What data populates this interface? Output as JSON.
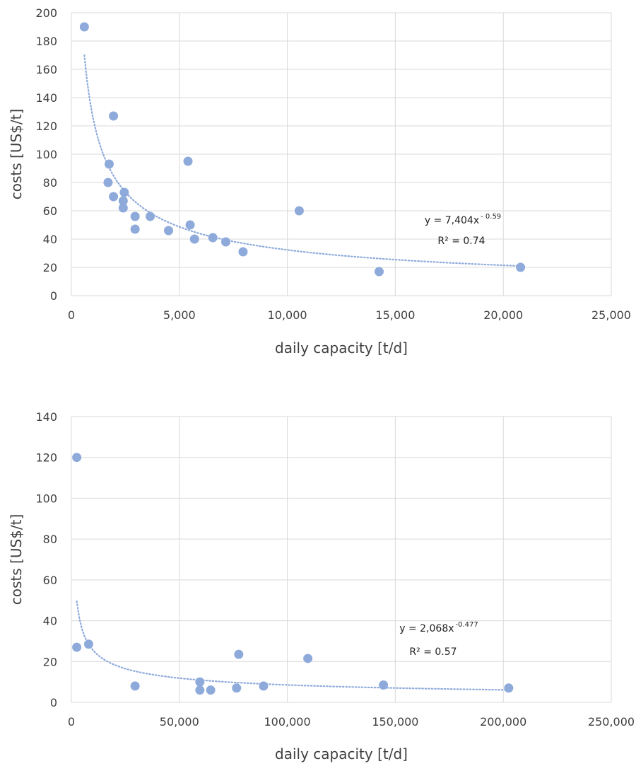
{
  "colors": {
    "marker": "#8eaadb",
    "trendline": "#8eaadb",
    "grid": "#d9d9d9",
    "text": "#404040"
  },
  "chart_data": [
    {
      "type": "scatter",
      "xlabel": "daily capacity [t/d]",
      "ylabel": "costs [US$/t]",
      "xlim": [
        0,
        25000
      ],
      "ylim": [
        0,
        200
      ],
      "x_ticks": [
        0,
        5000,
        10000,
        15000,
        20000,
        25000
      ],
      "x_tick_labels": [
        "0",
        "5,000",
        "10,000",
        "15,000",
        "20,000",
        "25,000"
      ],
      "y_ticks": [
        0,
        20,
        40,
        60,
        80,
        100,
        120,
        140,
        160,
        180,
        200
      ],
      "y_tick_labels": [
        "0",
        "20",
        "40",
        "60",
        "80",
        "100",
        "120",
        "140",
        "160",
        "180",
        "200"
      ],
      "grid": "vertical and horizontal",
      "points": [
        {
          "x": 600,
          "y": 190
        },
        {
          "x": 1950,
          "y": 127
        },
        {
          "x": 1750,
          "y": 93
        },
        {
          "x": 1700,
          "y": 80
        },
        {
          "x": 1950,
          "y": 70
        },
        {
          "x": 2450,
          "y": 73
        },
        {
          "x": 2400,
          "y": 67
        },
        {
          "x": 2400,
          "y": 62
        },
        {
          "x": 2950,
          "y": 56
        },
        {
          "x": 2950,
          "y": 47
        },
        {
          "x": 3650,
          "y": 56
        },
        {
          "x": 4500,
          "y": 46
        },
        {
          "x": 5400,
          "y": 95
        },
        {
          "x": 5500,
          "y": 50
        },
        {
          "x": 5700,
          "y": 40
        },
        {
          "x": 6550,
          "y": 41
        },
        {
          "x": 7150,
          "y": 38
        },
        {
          "x": 7950,
          "y": 31
        },
        {
          "x": 10550,
          "y": 60
        },
        {
          "x": 14250,
          "y": 17
        },
        {
          "x": 20800,
          "y": 20
        }
      ],
      "trendline": {
        "type": "power",
        "a": 7404,
        "b": -0.59,
        "x_from": 600,
        "x_to": 20800
      },
      "equation": {
        "main": "y = 7,404x",
        "exponent": "- 0.59",
        "r2": "R² = 0.74"
      }
    },
    {
      "type": "scatter",
      "xlabel": "daily capacity [t/d]",
      "ylabel": "costs [US$/t]",
      "xlim": [
        0,
        250000
      ],
      "ylim": [
        0,
        140
      ],
      "x_ticks": [
        0,
        50000,
        100000,
        150000,
        200000,
        250000
      ],
      "x_tick_labels": [
        "0",
        "50,000",
        "100,000",
        "150,000",
        "200,000",
        "250,000"
      ],
      "y_ticks": [
        0,
        20,
        40,
        60,
        80,
        100,
        120,
        140
      ],
      "y_tick_labels": [
        "0",
        "20",
        "40",
        "60",
        "80",
        "100",
        "120",
        "140"
      ],
      "grid": "vertical and horizontal",
      "points": [
        {
          "x": 2500,
          "y": 120
        },
        {
          "x": 2500,
          "y": 27
        },
        {
          "x": 8000,
          "y": 28.5
        },
        {
          "x": 29500,
          "y": 8
        },
        {
          "x": 59500,
          "y": 10
        },
        {
          "x": 59500,
          "y": 6
        },
        {
          "x": 64500,
          "y": 6
        },
        {
          "x": 76500,
          "y": 7
        },
        {
          "x": 77500,
          "y": 23.5
        },
        {
          "x": 89000,
          "y": 8
        },
        {
          "x": 109500,
          "y": 21.5
        },
        {
          "x": 144500,
          "y": 8.5
        },
        {
          "x": 202500,
          "y": 7
        }
      ],
      "trendline": {
        "type": "power",
        "a": 2068,
        "b": -0.477,
        "x_from": 2500,
        "x_to": 202500
      },
      "equation": {
        "main": "y = 2,068x",
        "exponent": "-0.477",
        "r2": "R² = 0.57"
      }
    }
  ]
}
